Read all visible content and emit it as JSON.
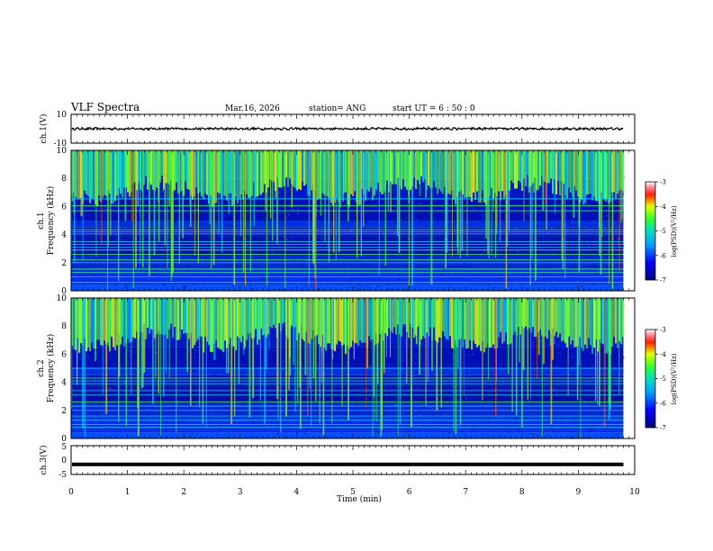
{
  "header": {
    "title": "VLF Spectra",
    "date": "Mar.16, 2026",
    "station": "station= ANG",
    "start": "start  UT =   6 : 50 : 0"
  },
  "chart_data": [
    {
      "type": "line",
      "name": "ch1-waveform",
      "ylabel": "ch.1(V)",
      "ylim": [
        -10,
        10
      ],
      "yticks": [
        "10",
        "-10"
      ],
      "trace_level": 0
    },
    {
      "type": "heatmap",
      "name": "ch1-spectrogram",
      "ylabel_line1": "ch.1",
      "ylabel_line2": "Frequency (kHz)",
      "ylim": [
        0,
        10
      ],
      "yticks": [
        "0",
        "2",
        "4",
        "6",
        "8",
        "10"
      ],
      "colorbar": {
        "label": "log(PSD)(V²/Hz)",
        "ticks": [
          "-3",
          "-4",
          "-5",
          "-6",
          "-7"
        ],
        "range": [
          -7,
          -3
        ]
      },
      "narrowband_lines_khz": [
        0.6,
        1.0,
        1.3,
        1.55,
        2.0,
        2.2,
        2.6,
        2.9,
        3.1,
        3.3,
        3.5,
        4.05,
        4.2,
        4.35,
        5.7,
        6.05,
        6.55
      ]
    },
    {
      "type": "heatmap",
      "name": "ch2-spectrogram",
      "ylabel_line1": "ch.2",
      "ylabel_line2": "Frequency (kHz)",
      "ylim": [
        0,
        10
      ],
      "yticks": [
        "0",
        "2",
        "4",
        "6",
        "8",
        "10"
      ],
      "colorbar": {
        "label": "log(PSD)(V²/Hz)",
        "ticks": [
          "-3",
          "-4",
          "-5",
          "-6",
          "-7"
        ],
        "range": [
          -7,
          -3
        ]
      },
      "narrowband_lines_khz": [
        0.8,
        1.0,
        1.3,
        1.6,
        2.0,
        2.3,
        2.6,
        3.1,
        3.4,
        3.9,
        4.1,
        4.3,
        5.0
      ]
    },
    {
      "type": "line",
      "name": "ch3-waveform",
      "ylabel": "ch.3(V)",
      "ylim": [
        -5,
        5
      ],
      "yticks": [
        "5",
        "0",
        "-5"
      ],
      "trace_level": -1.5
    }
  ],
  "xaxis": {
    "label": "Time (min)",
    "range": [
      0,
      10
    ],
    "ticks": [
      "0",
      "1",
      "2",
      "3",
      "4",
      "5",
      "6",
      "7",
      "8",
      "9",
      "10"
    ],
    "data_end": 9.8
  }
}
